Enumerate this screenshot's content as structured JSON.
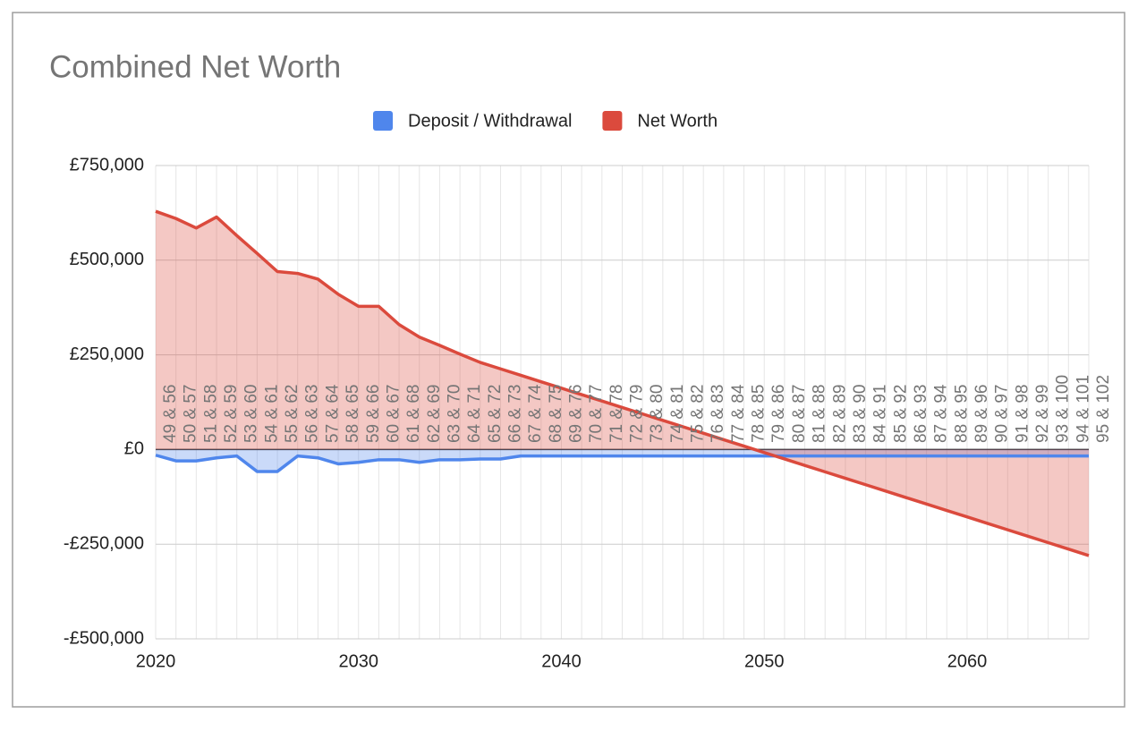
{
  "chart_data": {
    "type": "area",
    "title": "Combined Net Worth",
    "x": [
      2020,
      2021,
      2022,
      2023,
      2024,
      2025,
      2026,
      2027,
      2028,
      2029,
      2030,
      2031,
      2032,
      2033,
      2034,
      2035,
      2036,
      2037,
      2038,
      2039,
      2040,
      2041,
      2042,
      2043,
      2044,
      2045,
      2046,
      2047,
      2048,
      2049,
      2050,
      2051,
      2052,
      2053,
      2054,
      2055,
      2056,
      2057,
      2058,
      2059,
      2060,
      2061,
      2062,
      2063,
      2064,
      2065,
      2066
    ],
    "point_labels": [
      "49 & 56",
      "50 & 57",
      "51 & 58",
      "52 & 59",
      "53 & 60",
      "54 & 61",
      "55 & 62",
      "56 & 63",
      "57 & 64",
      "58 & 65",
      "59 & 66",
      "60 & 67",
      "61 & 68",
      "62 & 69",
      "63 & 70",
      "64 & 71",
      "65 & 72",
      "66 & 73",
      "67 & 74",
      "68 & 75",
      "69 & 76",
      "70 & 77",
      "71 & 78",
      "72 & 79",
      "73 & 80",
      "74 & 81",
      "75 & 82",
      "76 & 83",
      "77 & 84",
      "78 & 85",
      "79 & 86",
      "80 & 87",
      "81 & 88",
      "82 & 89",
      "83 & 90",
      "84 & 91",
      "85 & 92",
      "86 & 93",
      "87 & 94",
      "88 & 95",
      "89 & 96",
      "90 & 97",
      "91 & 98",
      "92 & 99",
      "93 & 100",
      "94 & 101",
      "95 & 102"
    ],
    "series": [
      {
        "name": "Deposit / Withdrawal",
        "color": "#4f86ec",
        "values": [
          -15000,
          -30000,
          -30000,
          -22000,
          -17000,
          -58000,
          -58000,
          -17000,
          -22000,
          -38000,
          -34000,
          -27000,
          -27000,
          -34000,
          -27000,
          -27000,
          -25000,
          -25000,
          -17000,
          -17000,
          -17000,
          -17000,
          -17000,
          -17000,
          -17000,
          -17000,
          -17000,
          -17000,
          -17000,
          -17000,
          -17000,
          -17000,
          -17000,
          -17000,
          -17000,
          -17000,
          -17000,
          -17000,
          -17000,
          -17000,
          -17000,
          -17000,
          -17000,
          -17000,
          -17000,
          -17000,
          -17000
        ]
      },
      {
        "name": "Net Worth",
        "color": "#db4a3d",
        "values": [
          629000,
          610000,
          585000,
          614000,
          565000,
          518000,
          470000,
          465000,
          450000,
          410000,
          378000,
          378000,
          330000,
          297000,
          275000,
          252000,
          230000,
          213000,
          196000,
          179000,
          162000,
          145000,
          128000,
          111000,
          94000,
          77000,
          60000,
          43000,
          26000,
          9000,
          -8000,
          -25000,
          -42000,
          -59000,
          -76000,
          -93000,
          -110000,
          -127000,
          -144000,
          -161000,
          -178000,
          -195000,
          -212000,
          -229000,
          -246000,
          -263000,
          -280000
        ]
      }
    ],
    "xlim": [
      2020,
      2066
    ],
    "xticks": [
      2020,
      2030,
      2040,
      2050,
      2060
    ],
    "ylim": [
      -500000,
      750000
    ],
    "yticks": [
      {
        "value": -500000,
        "label": "-£500,000"
      },
      {
        "value": -250000,
        "label": "-£250,000"
      },
      {
        "value": 0,
        "label": "£0"
      },
      {
        "value": 250000,
        "label": "£250,000"
      },
      {
        "value": 500000,
        "label": "£500,000"
      },
      {
        "value": 750000,
        "label": "£750,000"
      }
    ],
    "grid": true,
    "minor_x_grid": true,
    "legend": "top"
  }
}
